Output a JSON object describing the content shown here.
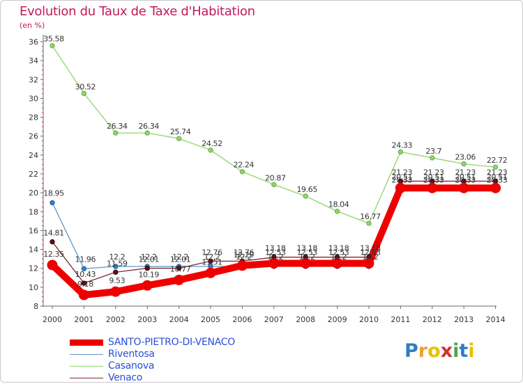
{
  "title": "Evolution du Taux de Taxe d'Habitation",
  "unit_label": "(en %)",
  "logo": {
    "letters": [
      "P",
      "r",
      "o",
      "x",
      "i",
      "t",
      "i"
    ],
    "colors": [
      "#2f7fc1",
      "#f0a030",
      "#e8c000",
      "#d03030",
      "#4aa84a",
      "#2f7fc1",
      "#e8c000"
    ]
  },
  "chart_data": {
    "type": "line",
    "title": "Evolution du Taux de Taxe d'Habitation",
    "ylabel": "(en %)",
    "xlabel": "",
    "x": [
      "2000",
      "2001",
      "2002",
      "2003",
      "2004",
      "2005",
      "2006",
      "2007",
      "2008",
      "2009",
      "2010",
      "2011",
      "2012",
      "2013",
      "2014"
    ],
    "ylim": [
      8,
      36
    ],
    "yticks": [
      "8",
      "10",
      "12",
      "14",
      "16",
      "18",
      "20",
      "22",
      "24",
      "26",
      "28",
      "30",
      "32",
      "34",
      "36"
    ],
    "grid": false,
    "legend_position": "bottom-left",
    "series": [
      {
        "name": "SANTO-PIETRO-DI-VENACO",
        "color": "#ee0000",
        "values": [
          12.35,
          9.18,
          9.53,
          10.19,
          10.77,
          11.51,
          12.29,
          12.53,
          12.53,
          12.53,
          12.53,
          20.51,
          20.51,
          20.51,
          20.51
        ],
        "labels": [
          "12.35",
          "9.18",
          "9.53",
          "10.19",
          "10.77",
          "11.51",
          "12.29",
          "12.53",
          "12.53",
          "12.53",
          "12.53",
          "20.51",
          "20.51",
          "20.51",
          "20.51"
        ]
      },
      {
        "name": "Riventosa",
        "color": "#5f96c8",
        "values": [
          18.95,
          11.96,
          12.2,
          12.2,
          12.2,
          12.2,
          12.2,
          12.2,
          12.2,
          12.2,
          12.2,
          20.33,
          20.33,
          20.33,
          20.33
        ],
        "labels": [
          "18.95",
          "11.96",
          "12.2",
          "12.2",
          "12.2",
          "12.2",
          "12.2",
          "12.2",
          "12.2",
          "12.2",
          "12.2",
          "20.33",
          "20.33",
          "20.33",
          "20.33"
        ]
      },
      {
        "name": "Casanova",
        "color": "#8fd46a",
        "values": [
          35.58,
          30.52,
          26.34,
          26.34,
          25.74,
          24.52,
          22.24,
          20.87,
          19.65,
          18.04,
          16.77,
          24.33,
          23.7,
          23.06,
          22.72
        ],
        "labels": [
          "35.58",
          "30.52",
          "26.34",
          "26.34",
          "25.74",
          "24.52",
          "22.24",
          "20.87",
          "19.65",
          "18.04",
          "16.77",
          "24.33",
          "23.7",
          "23.06",
          "22.72"
        ]
      },
      {
        "name": "Venaco",
        "color": "#7a2a32",
        "values": [
          14.81,
          10.43,
          11.59,
          12.01,
          12.01,
          12.76,
          12.76,
          13.18,
          13.18,
          13.18,
          13.18,
          21.23,
          21.23,
          21.23,
          21.23
        ],
        "labels": [
          "14.81",
          "10.43",
          "11.59",
          "12.01",
          "12.01",
          "12.76",
          "12.76",
          "13.18",
          "13.18",
          "13.18",
          "13.18",
          "21.23",
          "21.23",
          "21.23",
          "21.23"
        ]
      }
    ]
  }
}
